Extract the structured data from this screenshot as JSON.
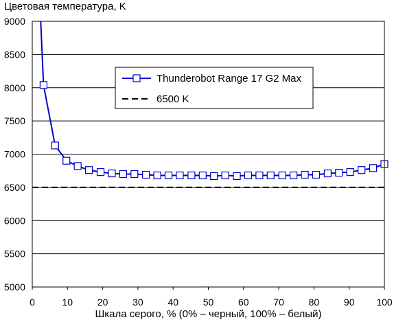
{
  "chart_data": {
    "type": "line",
    "title": "Цветовая температура, K",
    "xlabel": "Шкала серого, % (0% – черный, 100% – белый)",
    "ylabel": "",
    "xlim": [
      0,
      100
    ],
    "ylim": [
      5000,
      9000
    ],
    "xticks": [
      0,
      10,
      20,
      30,
      40,
      50,
      60,
      70,
      80,
      90,
      100
    ],
    "yticks": [
      5000,
      5500,
      6000,
      6500,
      7000,
      7500,
      8000,
      8500,
      9000
    ],
    "grid": "horizontal",
    "legend_position": "top-right",
    "series": [
      {
        "name": "Thunderobot Range 17 G2 Max",
        "color": "#0000cc",
        "marker": "square",
        "x": [
          2.4,
          3.2,
          6.5,
          9.7,
          12.9,
          16.1,
          19.4,
          22.6,
          25.8,
          29.0,
          32.3,
          35.5,
          38.7,
          41.9,
          45.2,
          48.4,
          51.6,
          54.8,
          58.1,
          61.3,
          64.5,
          67.7,
          71.0,
          74.2,
          77.4,
          80.6,
          83.9,
          87.1,
          90.3,
          93.5,
          96.8,
          100
        ],
        "y": [
          9000,
          8040,
          7130,
          6900,
          6820,
          6760,
          6730,
          6710,
          6700,
          6700,
          6690,
          6680,
          6680,
          6680,
          6680,
          6680,
          6670,
          6680,
          6670,
          6680,
          6680,
          6680,
          6680,
          6680,
          6690,
          6690,
          6710,
          6720,
          6730,
          6760,
          6790,
          6850
        ]
      },
      {
        "name": "6500 K",
        "color": "#000000",
        "dashed": true,
        "x": [
          0,
          100
        ],
        "y": [
          6500,
          6500
        ]
      }
    ]
  }
}
